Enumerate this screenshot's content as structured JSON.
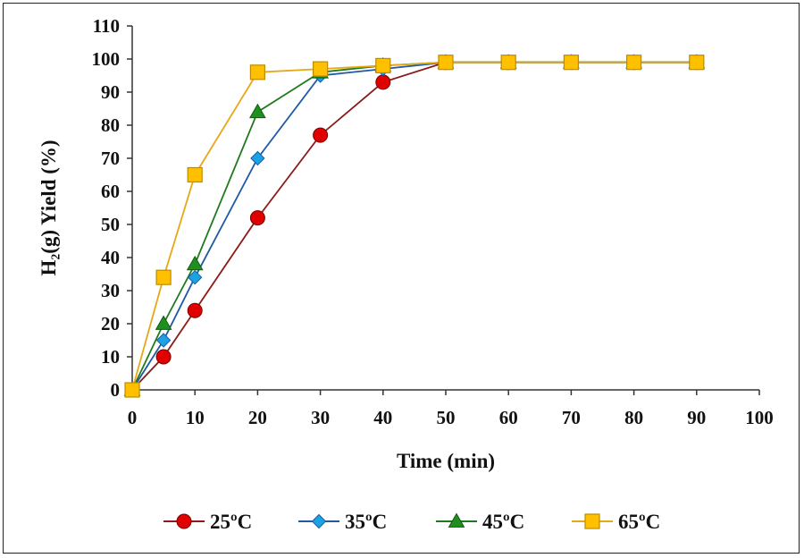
{
  "chart_data": {
    "type": "line",
    "xlabel": "Time (min)",
    "ylabel": "H₂(g) Yield (%)",
    "xlim": [
      0,
      100
    ],
    "ylim": [
      0,
      110
    ],
    "x_ticks": [
      0,
      10,
      20,
      30,
      40,
      50,
      60,
      70,
      80,
      90,
      100
    ],
    "y_ticks": [
      0,
      10,
      20,
      30,
      40,
      50,
      60,
      70,
      80,
      90,
      100,
      110
    ],
    "grid": false,
    "legend_position": "bottom",
    "series": [
      {
        "name": "25ºC",
        "color": "#8b1a1a",
        "marker_color": "#e00000",
        "marker": "circle",
        "x": [
          0,
          5,
          10,
          20,
          30,
          40,
          50,
          60,
          70,
          80,
          90
        ],
        "y": [
          0,
          10,
          24,
          52,
          77,
          93,
          99,
          99,
          99,
          99,
          99
        ]
      },
      {
        "name": "35ºC",
        "color": "#1f5aa6",
        "marker_color": "#1aa3e0",
        "marker": "diamond",
        "x": [
          0,
          5,
          10,
          20,
          30,
          40,
          50,
          60,
          70,
          80,
          90
        ],
        "y": [
          0,
          15,
          34,
          70,
          95,
          97,
          99,
          99,
          99,
          99,
          99
        ]
      },
      {
        "name": "45ºC",
        "color": "#1f7a1f",
        "marker_color": "#1f8f1f",
        "marker": "triangle",
        "x": [
          0,
          5,
          10,
          20,
          30,
          40,
          50,
          60,
          70,
          80,
          90
        ],
        "y": [
          0,
          20,
          38,
          84,
          96,
          98,
          99,
          99,
          99,
          99,
          99
        ]
      },
      {
        "name": "65ºC",
        "color": "#e6a817",
        "marker_color": "#ffc000",
        "marker": "square",
        "x": [
          0,
          5,
          10,
          20,
          30,
          40,
          50,
          60,
          70,
          80,
          90
        ],
        "y": [
          0,
          34,
          65,
          96,
          97,
          98,
          99,
          99,
          99,
          99,
          99
        ]
      }
    ]
  }
}
